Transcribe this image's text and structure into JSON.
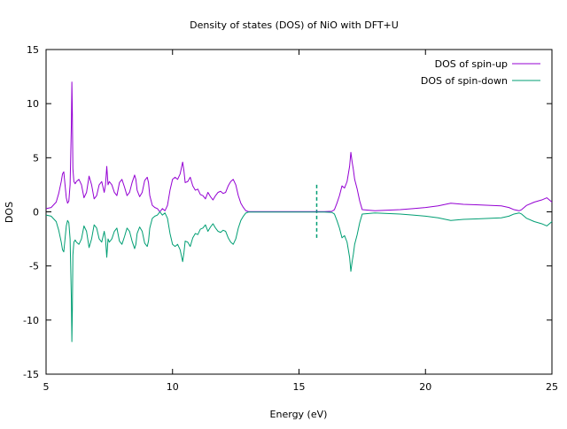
{
  "chart_data": {
    "type": "line",
    "title": "Density of states (DOS) of NiO with DFT+U",
    "xlabel": "Energy (eV)",
    "ylabel": "DOS",
    "xlim": [
      5,
      25
    ],
    "ylim": [
      -15,
      15
    ],
    "xticks": [
      5,
      10,
      15,
      20,
      25
    ],
    "yticks": [
      -15,
      -10,
      -5,
      0,
      5,
      10,
      15
    ],
    "legend_position": "top-right",
    "grid": false,
    "fermi_marker": {
      "x": 15.7,
      "y_range": [
        -2.5,
        2.5
      ],
      "style": "dashed"
    },
    "series": [
      {
        "name": "DOS of spin-up",
        "color": "#9400d3",
        "x": [
          5.0,
          5.2,
          5.4,
          5.5,
          5.6,
          5.65,
          5.7,
          5.75,
          5.8,
          5.85,
          5.9,
          5.95,
          6.0,
          6.02,
          6.04,
          6.06,
          6.1,
          6.15,
          6.2,
          6.3,
          6.4,
          6.5,
          6.6,
          6.7,
          6.8,
          6.9,
          7.0,
          7.1,
          7.2,
          7.3,
          7.35,
          7.4,
          7.45,
          7.5,
          7.6,
          7.7,
          7.8,
          7.9,
          8.0,
          8.1,
          8.2,
          8.3,
          8.4,
          8.5,
          8.55,
          8.6,
          8.7,
          8.8,
          8.9,
          9.0,
          9.05,
          9.1,
          9.2,
          9.3,
          9.4,
          9.5,
          9.6,
          9.7,
          9.8,
          9.9,
          10.0,
          10.1,
          10.2,
          10.3,
          10.4,
          10.45,
          10.5,
          10.6,
          10.7,
          10.8,
          10.9,
          11.0,
          11.1,
          11.2,
          11.3,
          11.4,
          11.5,
          11.6,
          11.7,
          11.8,
          11.9,
          12.0,
          12.1,
          12.2,
          12.3,
          12.4,
          12.5,
          12.6,
          12.7,
          12.8,
          12.9,
          13.0,
          14.0,
          15.0,
          16.0,
          16.3,
          16.4,
          16.5,
          16.6,
          16.7,
          16.8,
          16.9,
          17.0,
          17.05,
          17.1,
          17.15,
          17.2,
          17.3,
          17.4,
          17.5,
          18.0,
          18.5,
          19.0,
          19.5,
          20.0,
          20.5,
          21.0,
          21.5,
          22.0,
          22.5,
          23.0,
          23.3,
          23.5,
          23.7,
          23.8,
          24.0,
          24.3,
          24.6,
          24.8,
          25.0
        ],
        "y": [
          0.3,
          0.4,
          0.9,
          1.7,
          2.8,
          3.5,
          3.7,
          2.5,
          1.3,
          0.8,
          1.0,
          2.5,
          8.0,
          12.0,
          9.0,
          4.0,
          2.8,
          2.6,
          2.8,
          3.0,
          2.5,
          1.3,
          1.8,
          3.3,
          2.5,
          1.2,
          1.5,
          2.5,
          2.8,
          1.8,
          2.5,
          4.2,
          2.5,
          2.8,
          2.5,
          1.8,
          1.5,
          2.7,
          3.0,
          2.3,
          1.5,
          1.8,
          2.7,
          3.4,
          3.0,
          2.0,
          1.4,
          1.8,
          2.9,
          3.2,
          2.7,
          1.5,
          0.6,
          0.4,
          0.3,
          0.0,
          0.3,
          0.1,
          0.6,
          2.0,
          3.0,
          3.2,
          3.0,
          3.5,
          4.6,
          3.8,
          2.7,
          2.8,
          3.2,
          2.4,
          2.0,
          2.1,
          1.6,
          1.5,
          1.2,
          1.8,
          1.4,
          1.1,
          1.5,
          1.8,
          1.9,
          1.7,
          1.8,
          2.4,
          2.8,
          3.0,
          2.5,
          1.5,
          0.8,
          0.4,
          0.1,
          0.02,
          0.02,
          0.02,
          0.02,
          0.05,
          0.2,
          0.8,
          1.5,
          2.4,
          2.2,
          2.8,
          4.2,
          5.5,
          4.6,
          3.9,
          3.0,
          2.1,
          1.0,
          0.2,
          0.1,
          0.15,
          0.2,
          0.3,
          0.4,
          0.55,
          0.8,
          0.7,
          0.65,
          0.6,
          0.55,
          0.4,
          0.2,
          0.1,
          0.2,
          0.6,
          0.9,
          1.1,
          1.3,
          0.9
        ]
      },
      {
        "name": "DOS of spin-down",
        "color": "#009e73",
        "x": [
          5.0,
          5.2,
          5.4,
          5.5,
          5.6,
          5.65,
          5.7,
          5.75,
          5.8,
          5.85,
          5.9,
          5.95,
          6.0,
          6.02,
          6.04,
          6.06,
          6.1,
          6.15,
          6.2,
          6.3,
          6.4,
          6.5,
          6.6,
          6.7,
          6.8,
          6.9,
          7.0,
          7.1,
          7.2,
          7.3,
          7.35,
          7.4,
          7.45,
          7.5,
          7.6,
          7.7,
          7.8,
          7.9,
          8.0,
          8.1,
          8.2,
          8.3,
          8.4,
          8.5,
          8.55,
          8.6,
          8.7,
          8.8,
          8.9,
          9.0,
          9.05,
          9.1,
          9.2,
          9.3,
          9.4,
          9.5,
          9.6,
          9.7,
          9.8,
          9.9,
          10.0,
          10.1,
          10.2,
          10.3,
          10.4,
          10.45,
          10.5,
          10.6,
          10.7,
          10.8,
          10.9,
          11.0,
          11.1,
          11.2,
          11.3,
          11.4,
          11.5,
          11.6,
          11.7,
          11.8,
          11.9,
          12.0,
          12.1,
          12.2,
          12.3,
          12.4,
          12.5,
          12.6,
          12.7,
          12.8,
          12.9,
          13.0,
          14.0,
          15.0,
          16.0,
          16.3,
          16.4,
          16.5,
          16.6,
          16.7,
          16.8,
          16.9,
          17.0,
          17.05,
          17.1,
          17.15,
          17.2,
          17.3,
          17.4,
          17.5,
          18.0,
          18.5,
          19.0,
          19.5,
          20.0,
          20.5,
          21.0,
          21.5,
          22.0,
          22.5,
          23.0,
          23.3,
          23.5,
          23.7,
          23.8,
          24.0,
          24.3,
          24.6,
          24.8,
          25.0
        ],
        "y": [
          -0.3,
          -0.4,
          -0.9,
          -1.7,
          -2.8,
          -3.5,
          -3.7,
          -2.5,
          -1.3,
          -0.8,
          -1.0,
          -2.5,
          -8.0,
          -12.0,
          -9.0,
          -4.0,
          -2.8,
          -2.6,
          -2.8,
          -3.0,
          -2.5,
          -1.3,
          -1.8,
          -3.3,
          -2.5,
          -1.2,
          -1.5,
          -2.5,
          -2.8,
          -1.8,
          -2.5,
          -4.2,
          -2.5,
          -2.8,
          -2.5,
          -1.8,
          -1.5,
          -2.7,
          -3.0,
          -2.3,
          -1.5,
          -1.8,
          -2.7,
          -3.4,
          -3.0,
          -2.0,
          -1.4,
          -1.8,
          -2.9,
          -3.2,
          -2.7,
          -1.5,
          -0.6,
          -0.4,
          -0.3,
          0.0,
          -0.3,
          -0.1,
          -0.6,
          -2.0,
          -3.0,
          -3.2,
          -3.0,
          -3.5,
          -4.6,
          -3.8,
          -2.7,
          -2.8,
          -3.2,
          -2.4,
          -2.0,
          -2.1,
          -1.6,
          -1.5,
          -1.2,
          -1.8,
          -1.4,
          -1.1,
          -1.5,
          -1.8,
          -1.9,
          -1.7,
          -1.8,
          -2.4,
          -2.8,
          -3.0,
          -2.5,
          -1.5,
          -0.8,
          -0.4,
          -0.1,
          -0.02,
          -0.02,
          -0.02,
          -0.02,
          -0.05,
          -0.2,
          -0.8,
          -1.5,
          -2.4,
          -2.2,
          -2.8,
          -4.2,
          -5.5,
          -4.6,
          -3.9,
          -3.0,
          -2.1,
          -1.0,
          -0.2,
          -0.1,
          -0.15,
          -0.2,
          -0.3,
          -0.4,
          -0.55,
          -0.8,
          -0.7,
          -0.65,
          -0.6,
          -0.55,
          -0.4,
          -0.2,
          -0.1,
          -0.2,
          -0.6,
          -0.9,
          -1.1,
          -1.3,
          -0.9
        ]
      }
    ]
  }
}
